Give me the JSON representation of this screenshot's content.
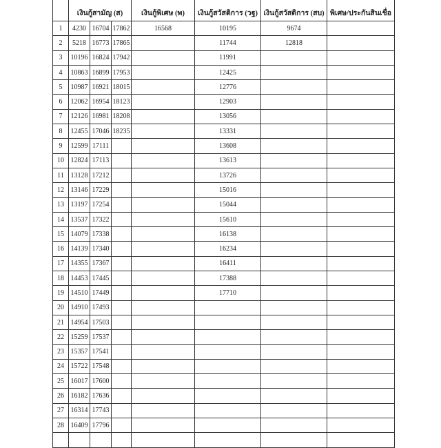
{
  "header": {
    "col_samanya": "เงินกู้สามัญ (ส)",
    "col_pised": "เงินกู้พิเศษ (พ)",
    "col_sawat_wt": "เงินกู้สวัสดิการ (วฐ)",
    "col_sawat_sb": "เงินกู้สวัสดิการ (สบ)",
    "col_last_line2": "พิเศษ/ประกันสินเชื่อ"
  },
  "rows": [
    {
      "no": "1",
      "s1": "4230",
      "s2": "16704",
      "s3": "17862",
      "p": "16568",
      "wt": "10195",
      "sb": "9674",
      "last": ""
    },
    {
      "no": "2",
      "s1": "5218",
      "s2": "16773",
      "s3": "17865",
      "p": "",
      "wt": "11744",
      "sb": "12818",
      "last": ""
    },
    {
      "no": "3",
      "s1": "10196",
      "s2": "16824",
      "s3": "17942",
      "p": "",
      "wt": "11991",
      "sb": "",
      "last": ""
    },
    {
      "no": "4",
      "s1": "10863",
      "s2": "16899",
      "s3": "17953",
      "p": "",
      "wt": "12425",
      "sb": "",
      "last": ""
    },
    {
      "no": "5",
      "s1": "10987",
      "s2": "16921",
      "s3": "18015",
      "p": "",
      "wt": "12776",
      "sb": "",
      "last": ""
    },
    {
      "no": "6",
      "s1": "12062",
      "s2": "16954",
      "s3": "18123",
      "p": "",
      "wt": "12903",
      "sb": "",
      "last": ""
    },
    {
      "no": "7",
      "s1": "12126",
      "s2": "16981",
      "s3": "18208",
      "p": "",
      "wt": "13056",
      "sb": "",
      "last": ""
    },
    {
      "no": "8",
      "s1": "12455",
      "s2": "17046",
      "s3": "18235",
      "p": "",
      "wt": "13331",
      "sb": "",
      "last": ""
    },
    {
      "no": "9",
      "s1": "12599",
      "s2": "17111",
      "s3": "",
      "p": "",
      "wt": "13608",
      "sb": "",
      "last": ""
    },
    {
      "no": "10",
      "s1": "12824",
      "s2": "17113",
      "s3": "",
      "p": "",
      "wt": "13613",
      "sb": "",
      "last": ""
    },
    {
      "no": "11",
      "s1": "13128",
      "s2": "17212",
      "s3": "",
      "p": "",
      "wt": "13726",
      "sb": "",
      "last": ""
    },
    {
      "no": "12",
      "s1": "13146",
      "s2": "17229",
      "s3": "",
      "p": "",
      "wt": "15016",
      "sb": "",
      "last": ""
    },
    {
      "no": "13",
      "s1": "13197",
      "s2": "17254",
      "s3": "",
      "p": "",
      "wt": "15044",
      "sb": "",
      "last": ""
    },
    {
      "no": "14",
      "s1": "13537",
      "s2": "17322",
      "s3": "",
      "p": "",
      "wt": "15610",
      "sb": "",
      "last": ""
    },
    {
      "no": "15",
      "s1": "14079",
      "s2": "17338",
      "s3": "",
      "p": "",
      "wt": "16138",
      "sb": "",
      "last": ""
    },
    {
      "no": "16",
      "s1": "14139",
      "s2": "17340",
      "s3": "",
      "p": "",
      "wt": "16234",
      "sb": "",
      "last": ""
    },
    {
      "no": "17",
      "s1": "14355",
      "s2": "17367",
      "s3": "",
      "p": "",
      "wt": "16411",
      "sb": "",
      "last": ""
    },
    {
      "no": "18",
      "s1": "14453",
      "s2": "17445",
      "s3": "",
      "p": "",
      "wt": "17388",
      "sb": "",
      "last": ""
    },
    {
      "no": "19",
      "s1": "14510",
      "s2": "17449",
      "s3": "",
      "p": "",
      "wt": "17710",
      "sb": "",
      "last": ""
    },
    {
      "no": "20",
      "s1": "14910",
      "s2": "17493",
      "s3": "",
      "p": "",
      "wt": "",
      "sb": "",
      "last": ""
    },
    {
      "no": "21",
      "s1": "14954",
      "s2": "17503",
      "s3": "",
      "p": "",
      "wt": "",
      "sb": "",
      "last": ""
    },
    {
      "no": "22",
      "s1": "15259",
      "s2": "17537",
      "s3": "",
      "p": "",
      "wt": "",
      "sb": "",
      "last": ""
    },
    {
      "no": "23",
      "s1": "15357",
      "s2": "17541",
      "s3": "",
      "p": "",
      "wt": "",
      "sb": "",
      "last": ""
    },
    {
      "no": "24",
      "s1": "15722",
      "s2": "17548",
      "s3": "",
      "p": "",
      "wt": "",
      "sb": "",
      "last": ""
    },
    {
      "no": "25",
      "s1": "16017",
      "s2": "17600",
      "s3": "",
      "p": "",
      "wt": "",
      "sb": "",
      "last": ""
    },
    {
      "no": "26",
      "s1": "16182",
      "s2": "17636",
      "s3": "",
      "p": "",
      "wt": "",
      "sb": "",
      "last": ""
    },
    {
      "no": "27",
      "s1": "16314",
      "s2": "17743",
      "s3": "",
      "p": "",
      "wt": "",
      "sb": "",
      "last": ""
    },
    {
      "no": "28",
      "s1": "16409",
      "s2": "17796",
      "s3": "",
      "p": "",
      "wt": "",
      "sb": "",
      "last": ""
    },
    {
      "no": "",
      "s1": "",
      "s2": "",
      "s3": "",
      "p": "",
      "wt": "",
      "sb": "",
      "last": ""
    }
  ]
}
